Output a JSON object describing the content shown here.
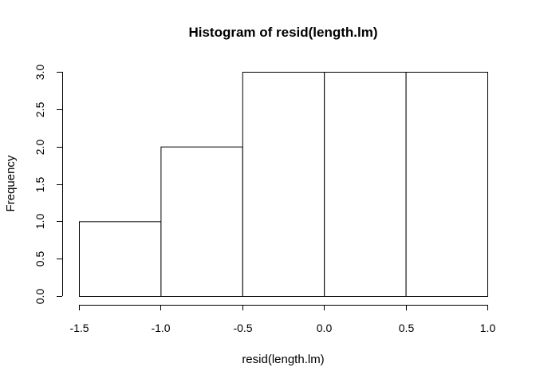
{
  "chart_data": {
    "type": "bar",
    "title": "Histogram of resid(length.lm)",
    "xlabel": "resid(length.lm)",
    "ylabel": "Frequency",
    "bins": [
      {
        "start": -1.5,
        "end": -1.0,
        "count": 1
      },
      {
        "start": -1.0,
        "end": -0.5,
        "count": 2
      },
      {
        "start": -0.5,
        "end": 0.0,
        "count": 3
      },
      {
        "start": 0.0,
        "end": 0.5,
        "count": 3
      },
      {
        "start": 0.5,
        "end": 1.0,
        "count": 3
      }
    ],
    "xlim": [
      -1.5,
      1.0
    ],
    "ylim": [
      0,
      3
    ],
    "x_ticks": [
      -1.5,
      -1.0,
      -0.5,
      0.0,
      0.5,
      1.0
    ],
    "x_tick_labels": [
      "-1.5",
      "-1.0",
      "-0.5",
      "0.0",
      "0.5",
      "1.0"
    ],
    "y_ticks": [
      0,
      0.5,
      1,
      1.5,
      2,
      2.5,
      3
    ],
    "y_tick_labels": [
      "0.0",
      "0.5",
      "1.0",
      "1.5",
      "2.0",
      "2.5",
      "3.0"
    ],
    "grid": false,
    "bar_fill": "#ffffff",
    "bar_stroke": "#000000"
  }
}
